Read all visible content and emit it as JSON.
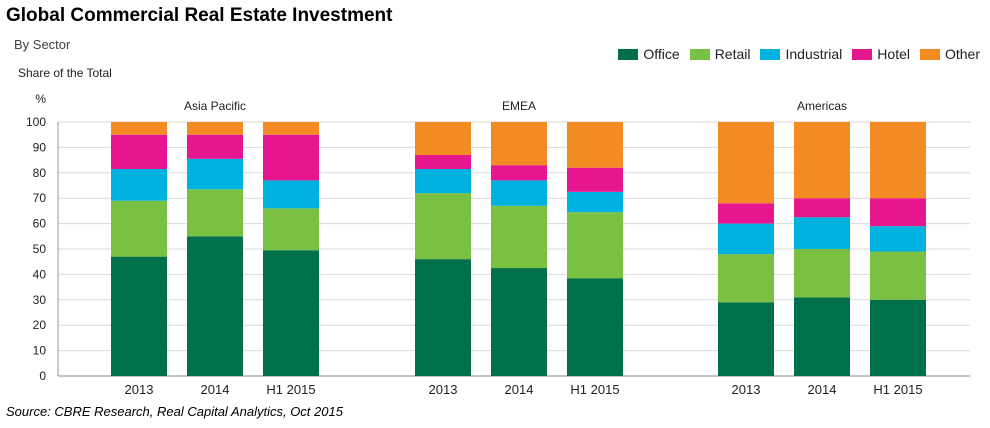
{
  "title": "Global Commercial Real Estate Investment",
  "subtitle": "By Sector",
  "source": "Source: CBRE Research, Real Capital Analytics, Oct 2015",
  "chart_data": {
    "type": "bar",
    "stacked": true,
    "ylabel": "Share of the Total",
    "yunit": "%",
    "ylim": [
      0,
      100
    ],
    "yticks": [
      0,
      10,
      20,
      30,
      40,
      50,
      60,
      70,
      80,
      90,
      100
    ],
    "legend_position": "top-right",
    "grid": true,
    "colors": {
      "Office": "#00704a",
      "Retail": "#7ac143",
      "Industrial": "#00b2e0",
      "Hotel": "#e6178e",
      "Other": "#f38b23"
    },
    "legend": [
      "Office",
      "Retail",
      "Industrial",
      "Hotel",
      "Other"
    ],
    "groups": [
      {
        "name": "Asia Pacific",
        "categories": [
          "2013",
          "2014",
          "H1 2015"
        ],
        "series": [
          {
            "name": "Office",
            "values": [
              47,
              55,
              49.5
            ]
          },
          {
            "name": "Retail",
            "values": [
              22,
              18.5,
              16.5
            ]
          },
          {
            "name": "Industrial",
            "values": [
              12.5,
              12,
              11
            ]
          },
          {
            "name": "Hotel",
            "values": [
              13.5,
              9.5,
              18
            ]
          },
          {
            "name": "Other",
            "values": [
              5,
              5,
              5
            ]
          }
        ]
      },
      {
        "name": "EMEA",
        "categories": [
          "2013",
          "2014",
          "H1 2015"
        ],
        "series": [
          {
            "name": "Office",
            "values": [
              46,
              42.5,
              38.5
            ]
          },
          {
            "name": "Retail",
            "values": [
              26,
              24.5,
              26
            ]
          },
          {
            "name": "Industrial",
            "values": [
              9.5,
              10,
              8
            ]
          },
          {
            "name": "Hotel",
            "values": [
              5.5,
              6,
              9.5
            ]
          },
          {
            "name": "Other",
            "values": [
              13,
              17,
              18
            ]
          }
        ]
      },
      {
        "name": "Americas",
        "categories": [
          "2013",
          "2014",
          "H1 2015"
        ],
        "series": [
          {
            "name": "Office",
            "values": [
              29,
              31,
              30
            ]
          },
          {
            "name": "Retail",
            "values": [
              19,
              19,
              19
            ]
          },
          {
            "name": "Industrial",
            "values": [
              12,
              12.5,
              10
            ]
          },
          {
            "name": "Hotel",
            "values": [
              8,
              7.5,
              11
            ]
          },
          {
            "name": "Other",
            "values": [
              32,
              30,
              30
            ]
          }
        ]
      }
    ]
  }
}
